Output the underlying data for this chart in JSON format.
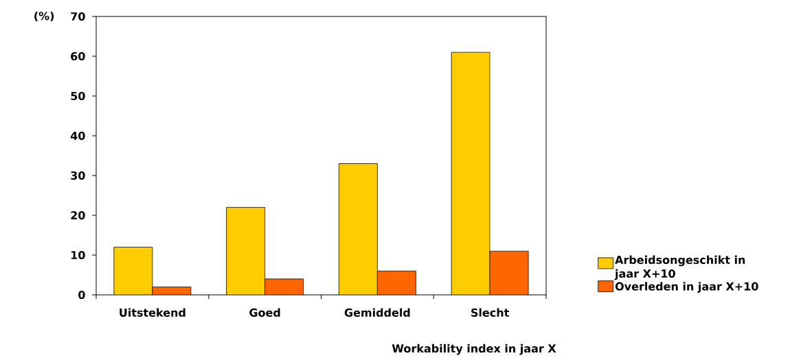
{
  "chart_data": {
    "type": "bar",
    "xlabel": "Workability index in jaar X",
    "ylabel": "(%)",
    "categories": [
      "Uitstekend",
      "Goed",
      "Gemiddeld",
      "Slecht"
    ],
    "series": [
      {
        "name": "Arbeidsongeschikt in jaar X+10",
        "color": "#ffcc00",
        "values": [
          12,
          22,
          33,
          61
        ]
      },
      {
        "name": "Overleden in jaar X+10",
        "color": "#ff6600",
        "values": [
          2,
          4,
          6,
          11
        ]
      }
    ],
    "ylim": [
      0,
      70
    ],
    "yticks": [
      0,
      10,
      20,
      30,
      40,
      50,
      60,
      70
    ],
    "grid": false,
    "legend": "right"
  }
}
